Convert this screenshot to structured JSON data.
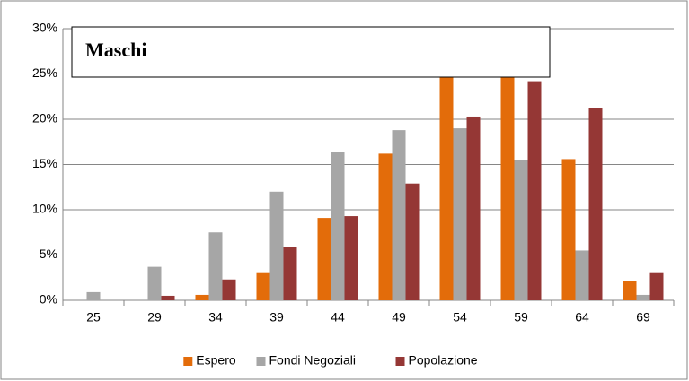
{
  "chart_data": {
    "type": "bar",
    "title": "Maschi",
    "categories": [
      "25",
      "29",
      "34",
      "39",
      "44",
      "49",
      "54",
      "59",
      "64",
      "69"
    ],
    "series": [
      {
        "name": "Espero",
        "color": "#e36c0a",
        "values": [
          0,
          0,
          0.6,
          3.1,
          9.1,
          16.2,
          27.0,
          26.5,
          15.6,
          2.1
        ]
      },
      {
        "name": "Fondi Negoziali",
        "color": "#a6a6a6",
        "values": [
          0.9,
          3.7,
          7.5,
          12.0,
          16.4,
          18.8,
          19.0,
          15.5,
          5.5,
          0.6
        ]
      },
      {
        "name": "Popolazione",
        "color": "#953735",
        "values": [
          0,
          0.5,
          2.3,
          5.9,
          9.3,
          12.9,
          20.3,
          24.2,
          21.2,
          3.1
        ]
      }
    ],
    "ylim": [
      0,
      30
    ],
    "yticks": [
      {
        "value": 0,
        "label": "0%"
      },
      {
        "value": 5,
        "label": "5%"
      },
      {
        "value": 10,
        "label": "10%"
      },
      {
        "value": 15,
        "label": "15%"
      },
      {
        "value": 20,
        "label": "20%"
      },
      {
        "value": 25,
        "label": "25%"
      },
      {
        "value": 30,
        "label": "30%"
      }
    ],
    "grid": true,
    "legend": "bottom"
  }
}
